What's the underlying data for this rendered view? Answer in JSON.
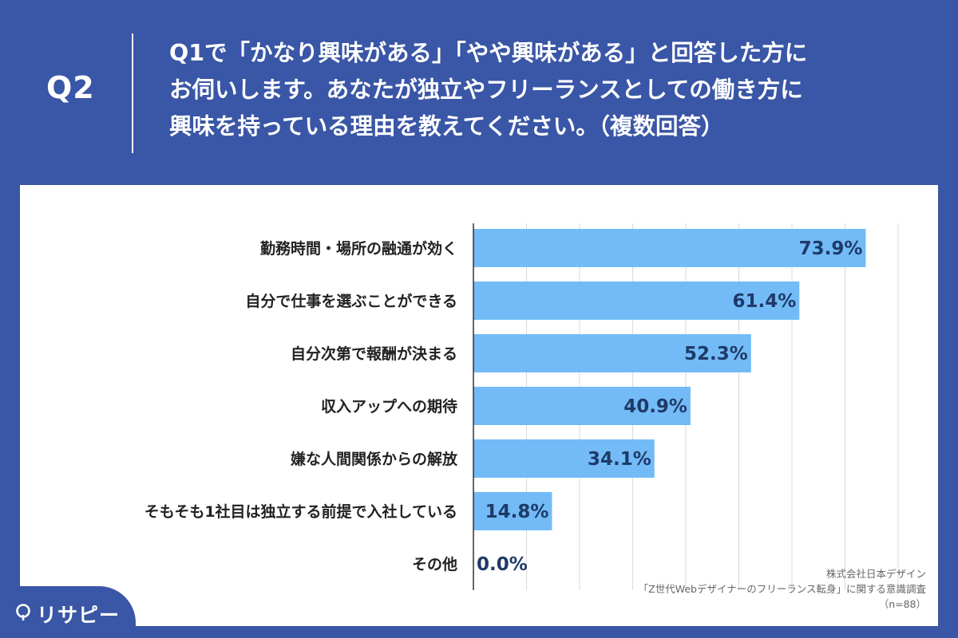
{
  "header": {
    "question_label": "Q2",
    "question_lines": [
      "Q1で「かなり興味がある」「やや興味がある」と回答した方に",
      "お伺いします。あなたが独立やフリーランスとしての働き方に",
      "興味を持っている理由を教えてください。（複数回答）"
    ]
  },
  "chart_data": {
    "type": "bar",
    "orientation": "horizontal",
    "categories": [
      "勤務時間・場所の融通が効く",
      "自分で仕事を選ぶことができる",
      "自分次第で報酬が決まる",
      "収入アップへの期待",
      "嫌な人間関係からの解放",
      "そもそも1社目は独立する前提で入社している",
      "その他"
    ],
    "values": [
      73.9,
      61.4,
      52.3,
      40.9,
      34.1,
      14.8,
      0.0
    ],
    "value_labels": [
      "73.9%",
      "61.4%",
      "52.3%",
      "40.9%",
      "34.1%",
      "14.8%",
      "0.0%"
    ],
    "xlim": [
      0,
      80
    ],
    "grid": true,
    "bar_color": "#72bbf7"
  },
  "source": {
    "line1": "株式会社日本デザイン",
    "line2": "「Z世代Webデザイナーのフリーランス転身」に関する意識調査",
    "line3": "（n=88）"
  },
  "brand": {
    "name": "リサピー",
    "icon": "lisapi-logo-icon"
  },
  "colors": {
    "background": "#3a56a6",
    "panel": "#ffffff",
    "bar": "#72bbf7",
    "value_text": "#1f3a68"
  }
}
